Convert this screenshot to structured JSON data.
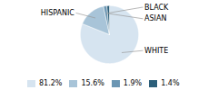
{
  "chart_data": {
    "type": "pie",
    "categories": [
      "WHITE",
      "HISPANIC",
      "ASIAN",
      "BLACK"
    ],
    "values": [
      81.2,
      15.6,
      1.9,
      1.4
    ],
    "value_labels": [
      "81.2%",
      "15.6%",
      "1.9%",
      "1.4%"
    ],
    "colors": [
      "#d6e4f0",
      "#a8c4d8",
      "#6b96b3",
      "#2c5f7a"
    ],
    "legend": "bottom"
  }
}
